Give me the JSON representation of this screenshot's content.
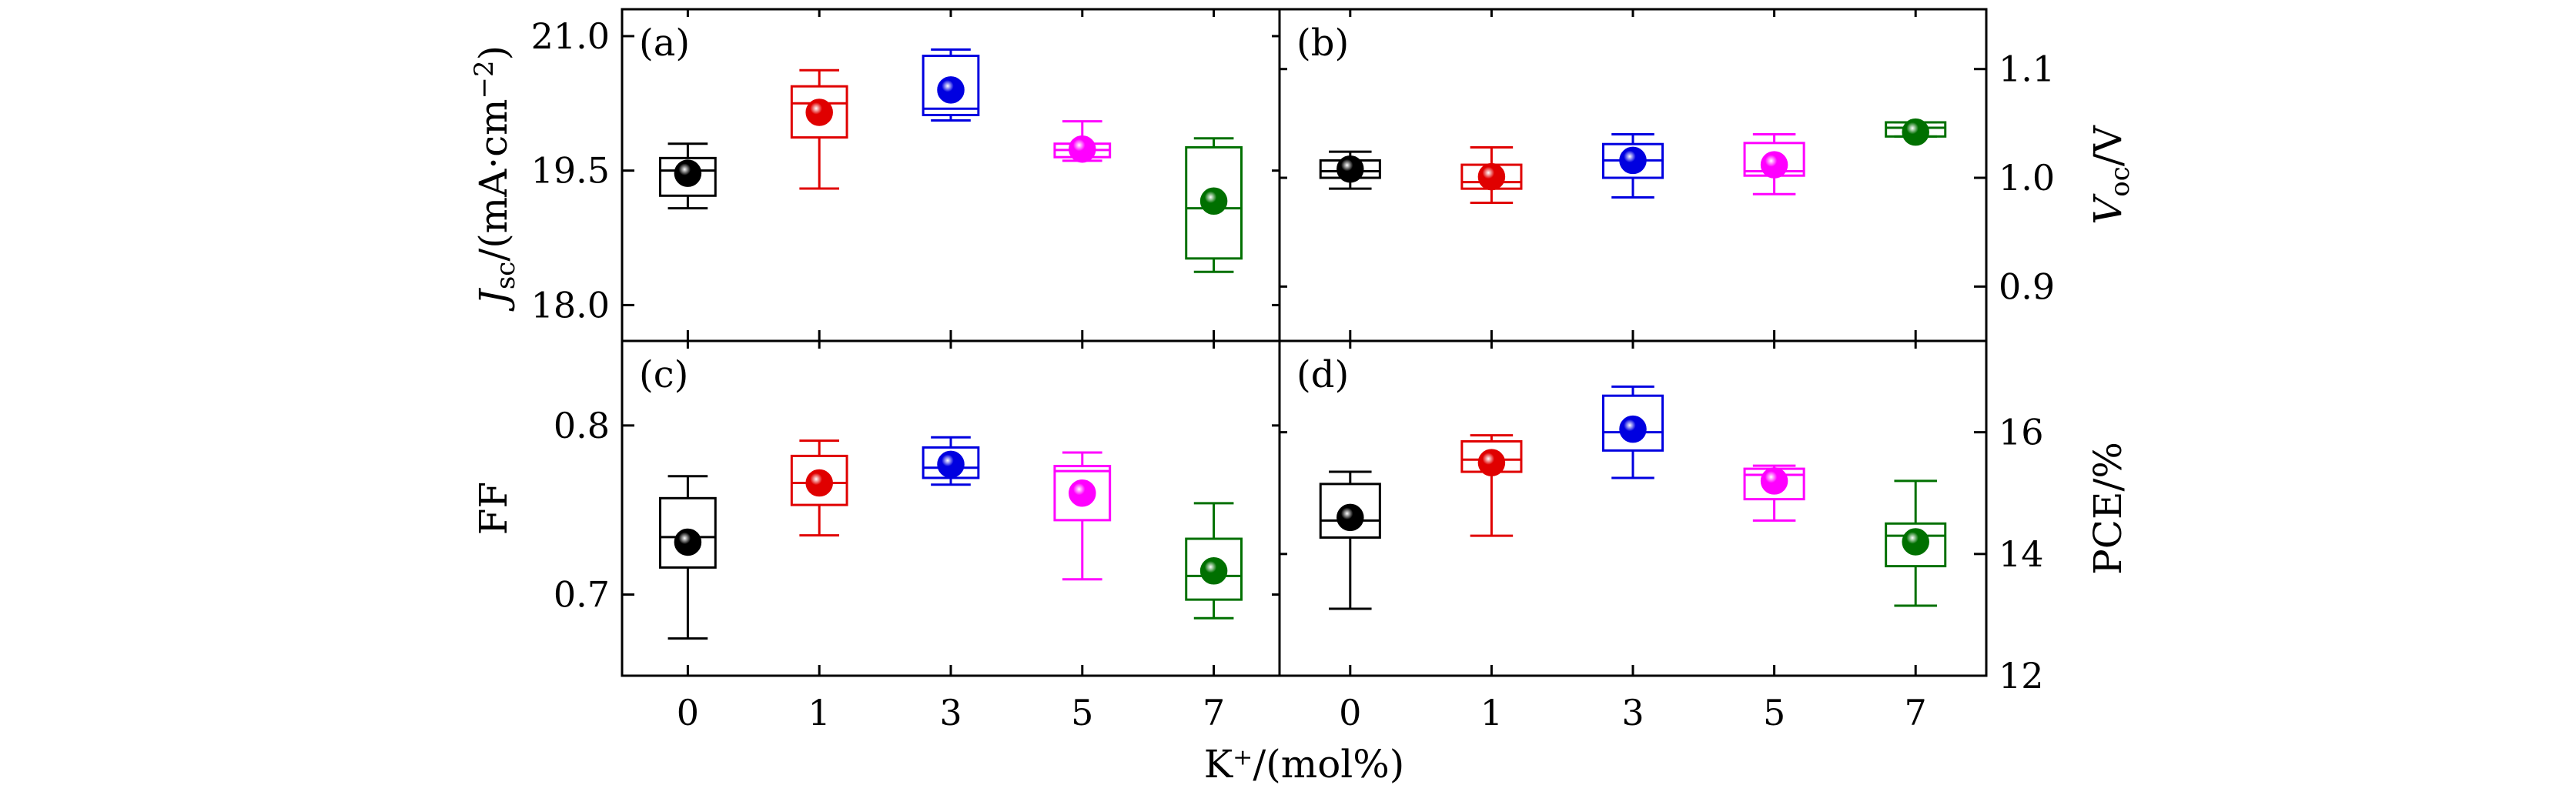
{
  "figure": {
    "xlabel": "K⁺/(mol%)",
    "colors": {
      "0": "#000000",
      "1": "#e00000",
      "3": "#0000e0",
      "5": "#ff00ff",
      "7": "#007000"
    }
  },
  "chart_data": [
    {
      "type": "box",
      "panel": "(a)",
      "categories": [
        "0",
        "1",
        "3",
        "5",
        "7"
      ],
      "ylabel_main": "J",
      "ylabel_sub": "sc",
      "ylabel_unit": "/(mA·cm",
      "ylabel_sup": "−2",
      "ylabel_close": ")",
      "yticks": [
        "18.0",
        "19.5",
        "21.0"
      ],
      "ylim": [
        17.6,
        21.3
      ],
      "boxes": [
        {
          "category": "0",
          "whisker_low": 19.08,
          "q1": 19.22,
          "median": 19.5,
          "q3": 19.64,
          "whisker_high": 19.8,
          "mean": 19.47
        },
        {
          "category": "1",
          "whisker_low": 19.3,
          "q1": 19.87,
          "median": 20.25,
          "q3": 20.44,
          "whisker_high": 20.62,
          "mean": 20.15
        },
        {
          "category": "3",
          "whisker_low": 20.06,
          "q1": 20.12,
          "median": 20.19,
          "q3": 20.78,
          "whisker_high": 20.85,
          "mean": 20.4
        },
        {
          "category": "5",
          "whisker_low": 19.61,
          "q1": 19.65,
          "median": 19.73,
          "q3": 19.8,
          "whisker_high": 20.05,
          "mean": 19.74
        },
        {
          "category": "7",
          "whisker_low": 18.37,
          "q1": 18.52,
          "median": 19.08,
          "q3": 19.76,
          "whisker_high": 19.86,
          "mean": 19.16
        }
      ]
    },
    {
      "type": "box",
      "panel": "(b)",
      "categories": [
        "0",
        "1",
        "3",
        "5",
        "7"
      ],
      "ylabel_main": "V",
      "ylabel_sub": "oc",
      "ylabel_unit": "/V",
      "yticks": [
        "0.9",
        "1.0",
        "1.1"
      ],
      "ylim": [
        0.85,
        1.155
      ],
      "boxes": [
        {
          "category": "0",
          "whisker_low": 0.99,
          "q1": 1.0,
          "median": 1.006,
          "q3": 1.016,
          "whisker_high": 1.024,
          "mean": 1.008
        },
        {
          "category": "1",
          "whisker_low": 0.977,
          "q1": 0.99,
          "median": 0.996,
          "q3": 1.012,
          "whisker_high": 1.028,
          "mean": 1.001
        },
        {
          "category": "3",
          "whisker_low": 0.982,
          "q1": 1.0,
          "median": 1.016,
          "q3": 1.031,
          "whisker_high": 1.04,
          "mean": 1.016
        },
        {
          "category": "5",
          "whisker_low": 0.985,
          "q1": 1.002,
          "median": 1.006,
          "q3": 1.032,
          "whisker_high": 1.04,
          "mean": 1.012
        },
        {
          "category": "7",
          "whisker_low": 1.038,
          "q1": 1.038,
          "median": 1.046,
          "q3": 1.051,
          "whisker_high": 1.051,
          "mean": 1.042
        }
      ]
    },
    {
      "type": "box",
      "panel": "(c)",
      "categories": [
        "0",
        "1",
        "3",
        "5",
        "7"
      ],
      "ylabel_main": "FF",
      "yticks": [
        "0.7",
        "0.8"
      ],
      "ylim": [
        0.652,
        0.85
      ],
      "boxes": [
        {
          "category": "0",
          "whisker_low": 0.674,
          "q1": 0.716,
          "median": 0.734,
          "q3": 0.757,
          "whisker_high": 0.77,
          "mean": 0.731
        },
        {
          "category": "1",
          "whisker_low": 0.735,
          "q1": 0.753,
          "median": 0.766,
          "q3": 0.782,
          "whisker_high": 0.791,
          "mean": 0.766
        },
        {
          "category": "3",
          "whisker_low": 0.765,
          "q1": 0.769,
          "median": 0.775,
          "q3": 0.787,
          "whisker_high": 0.793,
          "mean": 0.777
        },
        {
          "category": "5",
          "whisker_low": 0.709,
          "q1": 0.744,
          "median": 0.773,
          "q3": 0.776,
          "whisker_high": 0.784,
          "mean": 0.76
        },
        {
          "category": "7",
          "whisker_low": 0.686,
          "q1": 0.697,
          "median": 0.711,
          "q3": 0.733,
          "whisker_high": 0.754,
          "mean": 0.714
        }
      ]
    },
    {
      "type": "box",
      "panel": "(d)",
      "categories": [
        "0",
        "1",
        "3",
        "5",
        "7"
      ],
      "ylabel_main": "PCE/%",
      "yticks": [
        "12",
        "14",
        "16"
      ],
      "ylim": [
        12.0,
        17.5
      ],
      "boxes": [
        {
          "category": "0",
          "whisker_low": 13.1,
          "q1": 14.27,
          "median": 14.55,
          "q3": 15.15,
          "whisker_high": 15.35,
          "mean": 14.6
        },
        {
          "category": "1",
          "whisker_low": 14.3,
          "q1": 15.35,
          "median": 15.55,
          "q3": 15.85,
          "whisker_high": 15.95,
          "mean": 15.5
        },
        {
          "category": "3",
          "whisker_low": 15.25,
          "q1": 15.7,
          "median": 16.0,
          "q3": 16.6,
          "whisker_high": 16.75,
          "mean": 16.05
        },
        {
          "category": "5",
          "whisker_low": 14.55,
          "q1": 14.9,
          "median": 15.3,
          "q3": 15.4,
          "whisker_high": 15.45,
          "mean": 15.2
        },
        {
          "category": "7",
          "whisker_low": 13.15,
          "q1": 13.8,
          "median": 14.3,
          "q3": 14.5,
          "whisker_high": 15.2,
          "mean": 14.2
        }
      ]
    }
  ]
}
